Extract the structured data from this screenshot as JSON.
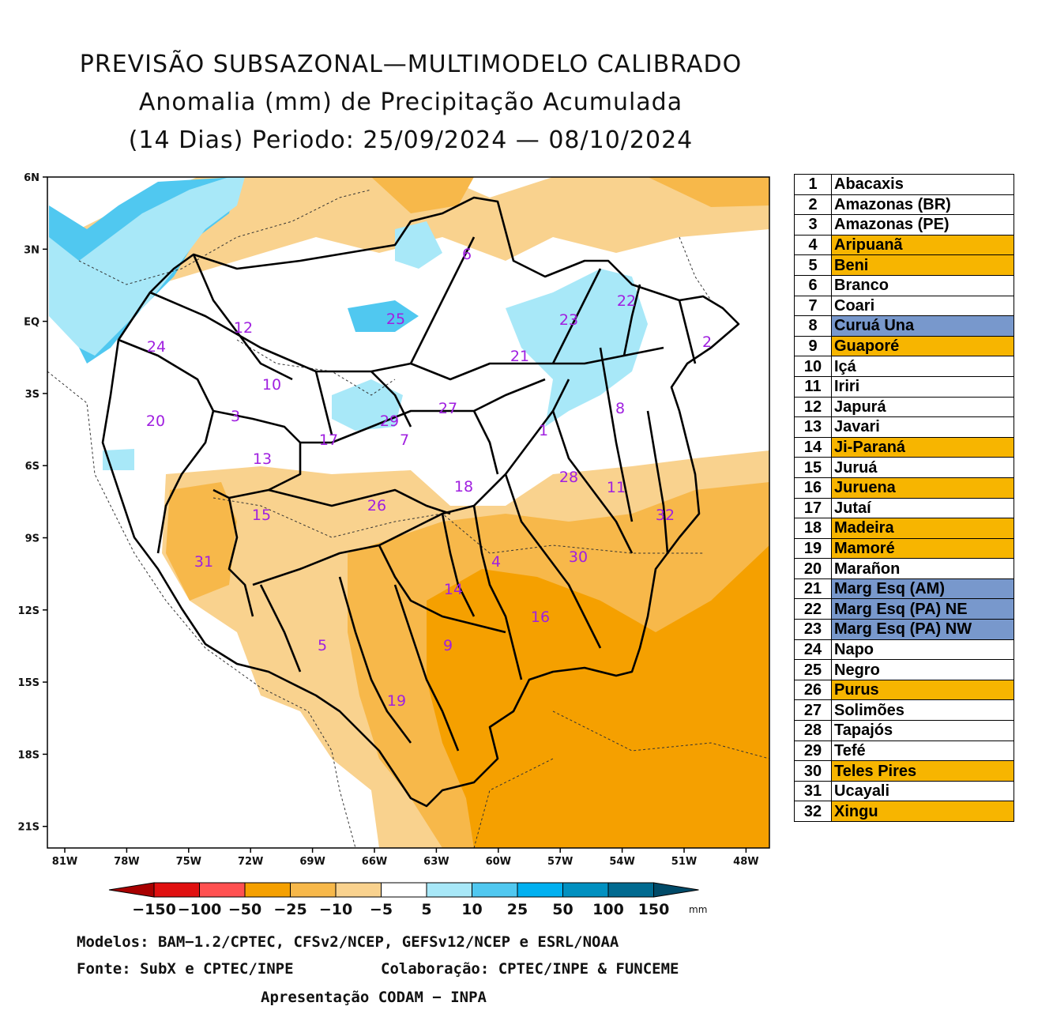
{
  "title": {
    "line1": "PREVISÃO SUBSAZONAL—MULTIMODELO CALIBRADO",
    "line2": "Anomalia (mm) de Precipitação Acumulada",
    "line3": "(14 Dias) Periodo: 25/09/2024 — 08/10/2024"
  },
  "axes": {
    "lat_labels": [
      "6N",
      "3N",
      "EQ",
      "3S",
      "6S",
      "9S",
      "12S",
      "15S",
      "18S",
      "21S"
    ],
    "lon_labels": [
      "81W",
      "78W",
      "75W",
      "72W",
      "69W",
      "66W",
      "63W",
      "60W",
      "57W",
      "54W",
      "51W",
      "48W"
    ]
  },
  "colorbar": {
    "labels": [
      "−150",
      "−100",
      "−50",
      "−25",
      "−10",
      "−5",
      "5",
      "10",
      "25",
      "50",
      "100",
      "150"
    ],
    "unit": "mm",
    "colors": [
      "#a80000",
      "#e01010",
      "#ff5050",
      "#f5a000",
      "#f7b84a",
      "#f9d28e",
      "#ffffff",
      "#a8e8f8",
      "#50c8f0",
      "#00b0f0",
      "#0090c0",
      "#006a90",
      "#004a68"
    ]
  },
  "basin_labels": [
    {
      "id": "1"
    },
    {
      "id": "2"
    },
    {
      "id": "3"
    },
    {
      "id": "4"
    },
    {
      "id": "5"
    },
    {
      "id": "6"
    },
    {
      "id": "7"
    },
    {
      "id": "8"
    },
    {
      "id": "9"
    },
    {
      "id": "10"
    },
    {
      "id": "11"
    },
    {
      "id": "12"
    },
    {
      "id": "13"
    },
    {
      "id": "14"
    },
    {
      "id": "15"
    },
    {
      "id": "16"
    },
    {
      "id": "17"
    },
    {
      "id": "18"
    },
    {
      "id": "19"
    },
    {
      "id": "20"
    },
    {
      "id": "21"
    },
    {
      "id": "22"
    },
    {
      "id": "23"
    },
    {
      "id": "24"
    },
    {
      "id": "25"
    },
    {
      "id": "26"
    },
    {
      "id": "27"
    },
    {
      "id": "28"
    },
    {
      "id": "29"
    },
    {
      "id": "30"
    },
    {
      "id": "31"
    },
    {
      "id": "32"
    }
  ],
  "legend": [
    {
      "num": "1",
      "name": "Abacaxis",
      "status": "white"
    },
    {
      "num": "2",
      "name": "Amazonas (BR)",
      "status": "white"
    },
    {
      "num": "3",
      "name": "Amazonas (PE)",
      "status": "white"
    },
    {
      "num": "4",
      "name": "Aripuanã",
      "status": "orange"
    },
    {
      "num": "5",
      "name": "Beni",
      "status": "orange"
    },
    {
      "num": "6",
      "name": "Branco",
      "status": "white"
    },
    {
      "num": "7",
      "name": "Coari",
      "status": "white"
    },
    {
      "num": "8",
      "name": "Curuá Una",
      "status": "blue"
    },
    {
      "num": "9",
      "name": "Guaporé",
      "status": "orange"
    },
    {
      "num": "10",
      "name": "Içá",
      "status": "white"
    },
    {
      "num": "11",
      "name": "Iriri",
      "status": "white"
    },
    {
      "num": "12",
      "name": "Japurá",
      "status": "white"
    },
    {
      "num": "13",
      "name": "Javari",
      "status": "white"
    },
    {
      "num": "14",
      "name": "Ji-Paraná",
      "status": "orange"
    },
    {
      "num": "15",
      "name": "Juruá",
      "status": "white"
    },
    {
      "num": "16",
      "name": "Juruena",
      "status": "orange"
    },
    {
      "num": "17",
      "name": "Jutaí",
      "status": "white"
    },
    {
      "num": "18",
      "name": "Madeira",
      "status": "orange"
    },
    {
      "num": "19",
      "name": "Mamoré",
      "status": "orange"
    },
    {
      "num": "20",
      "name": "Marañon",
      "status": "white"
    },
    {
      "num": "21",
      "name": "Marg Esq (AM)",
      "status": "blue"
    },
    {
      "num": "22",
      "name": "Marg Esq (PA) NE",
      "status": "blue"
    },
    {
      "num": "23",
      "name": "Marg Esq (PA) NW",
      "status": "blue"
    },
    {
      "num": "24",
      "name": "Napo",
      "status": "white"
    },
    {
      "num": "25",
      "name": "Negro",
      "status": "white"
    },
    {
      "num": "26",
      "name": "Purus",
      "status": "orange"
    },
    {
      "num": "27",
      "name": "Solimões",
      "status": "white"
    },
    {
      "num": "28",
      "name": "Tapajós",
      "status": "white"
    },
    {
      "num": "29",
      "name": "Tefé",
      "status": "white"
    },
    {
      "num": "30",
      "name": "Teles Pires",
      "status": "orange"
    },
    {
      "num": "31",
      "name": "Ucayali",
      "status": "white"
    },
    {
      "num": "32",
      "name": "Xingu",
      "status": "orange"
    }
  ],
  "footer": {
    "models": "Modelos: BAM−1.2/CPTEC, CFSv2/NCEP, GEFSv12/NCEP e ESRL/NOAA",
    "source": "Fonte: SubX e CPTEC/INPE",
    "collab": "Colaboração: CPTEC/INPE & FUNCEME",
    "presentation": "Apresentação CODAM − INPA"
  }
}
